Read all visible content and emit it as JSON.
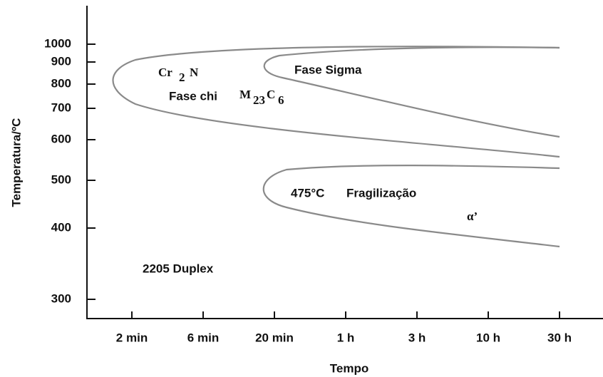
{
  "axes": {
    "y_label": "Temperatura/ºC",
    "x_label": "Tempo",
    "y_ticks": [
      "1000",
      "900",
      "800",
      "700",
      "600",
      "500",
      "400",
      "300"
    ],
    "x_ticks": [
      "2 min",
      "6 min",
      "20 min",
      "1 h",
      "3 h",
      "10 h",
      "30 h"
    ]
  },
  "labels": {
    "cr2n": [
      "Cr",
      "2",
      "N"
    ],
    "fase_chi": "Fase chi",
    "m23c6": [
      "M",
      "23",
      "C",
      "6"
    ],
    "fase_sigma": "Fase Sigma",
    "fragilizacao": [
      "475°C",
      "Fragilização"
    ],
    "alpha": "α’",
    "alloy": "2205 Duplex"
  }
}
